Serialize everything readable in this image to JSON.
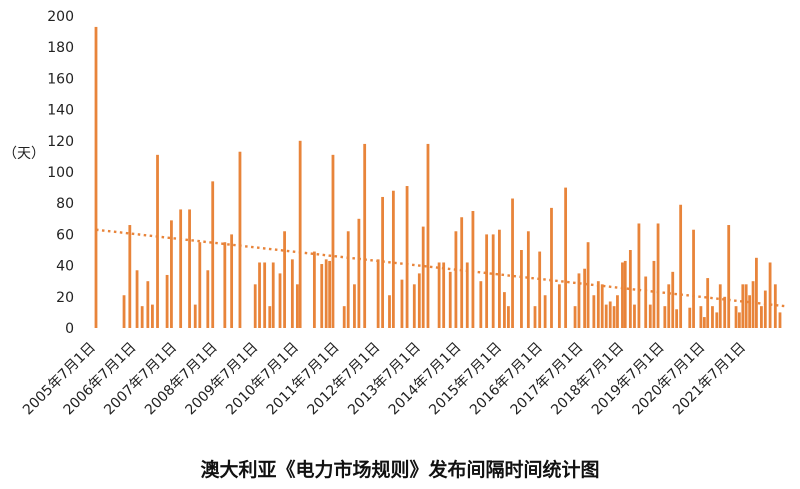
{
  "chart_data": {
    "type": "bar",
    "title": "澳大利亚《电力市场规则》发布间隔时间统计图",
    "ylabel": "（天）",
    "xlabel": "",
    "ylim": [
      0,
      200
    ],
    "y_ticks": [
      0,
      20,
      40,
      60,
      80,
      100,
      120,
      140,
      160,
      180,
      200
    ],
    "x_range": [
      "2005-07-01",
      "2022-06-15"
    ],
    "x_tick_labels": [
      "2005年7月1日",
      "2006年7月1日",
      "2007年7月1日",
      "2008年7月1日",
      "2009年7月1日",
      "2010年7月1日",
      "2011年7月1日",
      "2012年7月1日",
      "2013年7月1日",
      "2014年7月1日",
      "2015年7月1日",
      "2016年7月1日",
      "2017年7月1日",
      "2018年7月1日",
      "2019年7月1日",
      "2020年7月1日",
      "2021年7月1日"
    ],
    "grid": false,
    "bar_color": "#e8843a",
    "trend_color": "#e8843a",
    "trend_line": {
      "start": [
        "2005-07-01",
        63
      ],
      "end": [
        "2022-06-15",
        14
      ]
    },
    "points": [
      [
        "2005-07-01",
        193
      ],
      [
        "2006-03-10",
        21
      ],
      [
        "2006-05-01",
        66
      ],
      [
        "2006-07-05",
        37
      ],
      [
        "2006-08-20",
        14
      ],
      [
        "2006-10-10",
        30
      ],
      [
        "2006-11-20",
        15
      ],
      [
        "2007-01-05",
        111
      ],
      [
        "2007-04-01",
        34
      ],
      [
        "2007-05-10",
        69
      ],
      [
        "2007-08-01",
        76
      ],
      [
        "2007-10-20",
        76
      ],
      [
        "2007-12-10",
        15
      ],
      [
        "2008-01-20",
        55
      ],
      [
        "2008-04-01",
        37
      ],
      [
        "2008-05-15",
        94
      ],
      [
        "2008-09-01",
        55
      ],
      [
        "2008-11-01",
        60
      ],
      [
        "2009-01-15",
        113
      ],
      [
        "2009-06-01",
        28
      ],
      [
        "2009-07-10",
        42
      ],
      [
        "2009-08-25",
        42
      ],
      [
        "2009-10-10",
        14
      ],
      [
        "2009-11-10",
        42
      ],
      [
        "2010-01-10",
        35
      ],
      [
        "2010-02-20",
        62
      ],
      [
        "2010-05-01",
        44
      ],
      [
        "2010-06-15",
        28
      ],
      [
        "2010-07-10",
        120
      ],
      [
        "2010-11-15",
        49
      ],
      [
        "2011-01-20",
        41
      ],
      [
        "2011-03-01",
        44
      ],
      [
        "2011-04-01",
        43
      ],
      [
        "2011-05-01",
        111
      ],
      [
        "2011-08-10",
        14
      ],
      [
        "2011-09-15",
        62
      ],
      [
        "2011-11-10",
        28
      ],
      [
        "2011-12-20",
        70
      ],
      [
        "2012-02-10",
        118
      ],
      [
        "2012-06-10",
        44
      ],
      [
        "2012-07-20",
        84
      ],
      [
        "2012-09-20",
        21
      ],
      [
        "2012-10-25",
        88
      ],
      [
        "2013-01-10",
        31
      ],
      [
        "2013-02-25",
        91
      ],
      [
        "2013-05-01",
        28
      ],
      [
        "2013-06-15",
        35
      ],
      [
        "2013-07-20",
        65
      ],
      [
        "2013-09-01",
        118
      ],
      [
        "2013-12-10",
        42
      ],
      [
        "2014-01-20",
        42
      ],
      [
        "2014-03-20",
        36
      ],
      [
        "2014-05-10",
        62
      ],
      [
        "2014-07-01",
        71
      ],
      [
        "2014-08-20",
        42
      ],
      [
        "2014-10-10",
        75
      ],
      [
        "2014-12-20",
        30
      ],
      [
        "2015-02-10",
        60
      ],
      [
        "2015-04-10",
        60
      ],
      [
        "2015-06-05",
        63
      ],
      [
        "2015-07-20",
        23
      ],
      [
        "2015-08-25",
        14
      ],
      [
        "2015-10-01",
        83
      ],
      [
        "2015-12-20",
        50
      ],
      [
        "2016-02-20",
        62
      ],
      [
        "2016-04-20",
        14
      ],
      [
        "2016-06-01",
        49
      ],
      [
        "2016-07-20",
        21
      ],
      [
        "2016-09-15",
        77
      ],
      [
        "2016-11-25",
        28
      ],
      [
        "2017-01-20",
        90
      ],
      [
        "2017-04-15",
        14
      ],
      [
        "2017-05-20",
        35
      ],
      [
        "2017-07-10",
        38
      ],
      [
        "2017-08-10",
        55
      ],
      [
        "2017-10-01",
        21
      ],
      [
        "2017-11-10",
        30
      ],
      [
        "2017-12-15",
        28
      ],
      [
        "2018-01-20",
        15
      ],
      [
        "2018-02-25",
        17
      ],
      [
        "2018-04-01",
        14
      ],
      [
        "2018-05-01",
        21
      ],
      [
        "2018-06-15",
        42
      ],
      [
        "2018-07-10",
        43
      ],
      [
        "2018-08-25",
        50
      ],
      [
        "2018-10-01",
        15
      ],
      [
        "2018-11-10",
        67
      ],
      [
        "2019-01-10",
        33
      ],
      [
        "2019-02-20",
        15
      ],
      [
        "2019-03-25",
        43
      ],
      [
        "2019-05-01",
        67
      ],
      [
        "2019-07-01",
        14
      ],
      [
        "2019-08-05",
        28
      ],
      [
        "2019-09-10",
        36
      ],
      [
        "2019-10-15",
        12
      ],
      [
        "2019-11-20",
        79
      ],
      [
        "2020-02-10",
        13
      ],
      [
        "2020-03-15",
        63
      ],
      [
        "2020-05-20",
        14
      ],
      [
        "2020-06-20",
        7
      ],
      [
        "2020-07-20",
        32
      ],
      [
        "2020-09-01",
        14
      ],
      [
        "2020-10-10",
        10
      ],
      [
        "2020-11-10",
        28
      ],
      [
        "2020-12-20",
        20
      ],
      [
        "2021-01-25",
        66
      ],
      [
        "2021-04-01",
        14
      ],
      [
        "2021-05-01",
        10
      ],
      [
        "2021-06-01",
        28
      ],
      [
        "2021-07-01",
        28
      ],
      [
        "2021-08-01",
        21
      ],
      [
        "2021-09-01",
        30
      ],
      [
        "2021-10-01",
        45
      ],
      [
        "2021-11-15",
        14
      ],
      [
        "2021-12-20",
        24
      ],
      [
        "2022-02-01",
        42
      ],
      [
        "2022-03-20",
        28
      ],
      [
        "2022-05-01",
        10
      ]
    ]
  }
}
